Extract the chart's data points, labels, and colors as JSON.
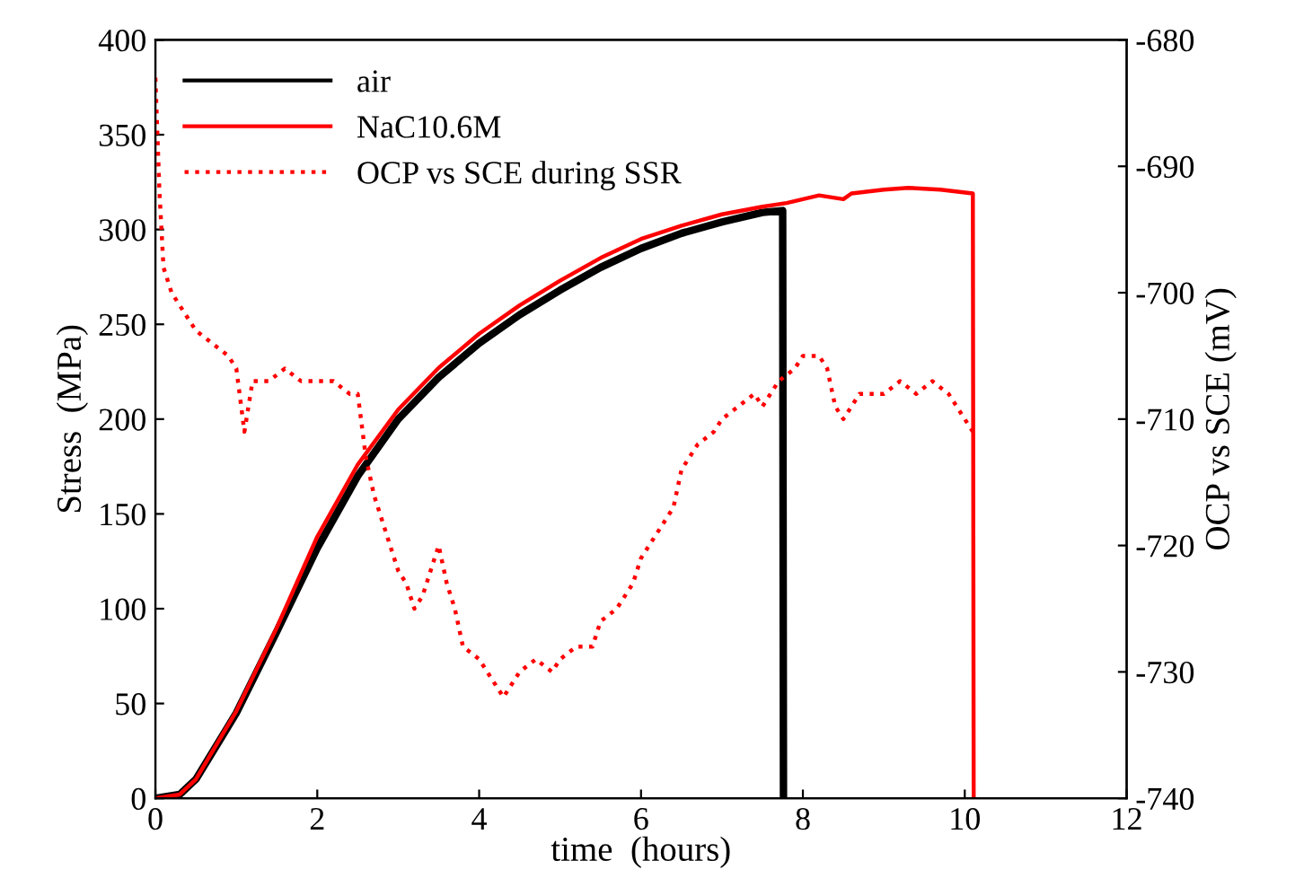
{
  "chart_data": {
    "type": "line",
    "xlabel": "time  (hours)",
    "ylabel": "Stress  (MPa)",
    "y2label": "OCP vs SCE (mV)",
    "xlim": [
      0,
      12
    ],
    "xticks": [
      0,
      2,
      4,
      6,
      8,
      10,
      12
    ],
    "ylim": [
      0,
      400
    ],
    "yticks": [
      0,
      50,
      100,
      150,
      200,
      250,
      300,
      350,
      400
    ],
    "y2lim": [
      -740,
      -680
    ],
    "y2ticks": [
      -740,
      -730,
      -720,
      -710,
      -700,
      -690,
      -680
    ],
    "legend": "top left",
    "grid": false,
    "series": [
      {
        "name": "air",
        "color": "#000000",
        "line_style": "solid",
        "x": [
          0,
          0.3,
          0.5,
          1,
          1.5,
          2,
          2.5,
          3,
          3.5,
          4,
          4.5,
          5,
          5.5,
          6,
          6.5,
          7,
          7.5,
          7.75,
          7.76
        ],
        "values": [
          0,
          2,
          10,
          45,
          88,
          132,
          170,
          200,
          222,
          240,
          255,
          268,
          280,
          290,
          298,
          304,
          309,
          310,
          0
        ]
      },
      {
        "name": "NaC10.6M",
        "color": "#ff0000",
        "line_style": "solid",
        "x": [
          0,
          0.3,
          0.5,
          1,
          1.5,
          2,
          2.5,
          3,
          3.5,
          4,
          4.5,
          5,
          5.5,
          6,
          6.5,
          7,
          7.5,
          7.8,
          8.2,
          8.5,
          8.6,
          9,
          9.3,
          9.7,
          10.1,
          10.11
        ],
        "values": [
          0,
          2,
          10,
          46,
          90,
          138,
          176,
          205,
          227,
          245,
          260,
          273,
          285,
          295,
          302,
          308,
          312,
          314,
          318,
          316,
          319,
          321,
          322,
          321,
          319,
          0
        ]
      },
      {
        "name": "OCP vs SCE during SSR",
        "color": "#ff0000",
        "line_style": "dotted",
        "axis": "y2",
        "x": [
          0,
          0.05,
          0.1,
          0.2,
          0.3,
          0.5,
          0.7,
          0.9,
          1.0,
          1.1,
          1.2,
          1.4,
          1.6,
          1.8,
          2.0,
          2.2,
          2.4,
          2.5,
          2.6,
          2.7,
          2.8,
          3.0,
          3.1,
          3.2,
          3.3,
          3.5,
          3.6,
          3.7,
          3.8,
          4.0,
          4.2,
          4.3,
          4.5,
          4.7,
          4.9,
          5.0,
          5.2,
          5.4,
          5.5,
          5.7,
          5.9,
          6.0,
          6.2,
          6.4,
          6.5,
          6.7,
          6.9,
          7.0,
          7.2,
          7.4,
          7.5,
          7.7,
          7.9,
          8.0,
          8.2,
          8.3,
          8.4,
          8.5,
          8.7,
          9.0,
          9.2,
          9.4,
          9.6,
          9.8,
          9.9,
          10.0,
          10.1
        ],
        "values": [
          -683,
          -692,
          -698,
          -700,
          -701,
          -703,
          -704,
          -705,
          -706,
          -711,
          -707,
          -707,
          -706,
          -707,
          -707,
          -707,
          -708,
          -708,
          -713,
          -716,
          -718,
          -722,
          -723,
          -725,
          -724,
          -720,
          -723,
          -725,
          -728,
          -729,
          -731,
          -732,
          -730,
          -729,
          -730,
          -729,
          -728,
          -728,
          -726,
          -725,
          -723,
          -721,
          -719,
          -717,
          -714,
          -712,
          -711,
          -710,
          -709,
          -708,
          -709,
          -707,
          -706,
          -705,
          -705,
          -706,
          -709,
          -710,
          -708,
          -708,
          -707,
          -708,
          -707,
          -708,
          -709,
          -710,
          -711
        ]
      }
    ]
  }
}
